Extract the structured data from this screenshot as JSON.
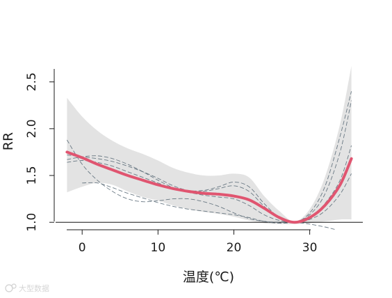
{
  "chart_data": {
    "type": "line",
    "title": "",
    "xlabel": "温度(℃)",
    "ylabel": "RR",
    "xlim": [
      -3.5,
      37
    ],
    "ylim": [
      0.92,
      2.78
    ],
    "x_ticks": [
      0,
      10,
      20,
      30
    ],
    "y_ticks": [
      1.0,
      1.5,
      2.0,
      2.5
    ],
    "x_tick_labels": [
      "0",
      "10",
      "20",
      "30"
    ],
    "y_tick_labels": [
      "1.0",
      "1.5",
      "2.0",
      "2.5"
    ],
    "reference_line": 1.0,
    "grid": false,
    "legend": "none",
    "main_curve": {
      "color": "#e05570",
      "x": [
        -2,
        0,
        2,
        4,
        6,
        8,
        10,
        12,
        14,
        16,
        18,
        20,
        22,
        24,
        26,
        28,
        30,
        32,
        34,
        35.5
      ],
      "y": [
        1.75,
        1.69,
        1.62,
        1.56,
        1.5,
        1.45,
        1.4,
        1.36,
        1.33,
        1.31,
        1.3,
        1.28,
        1.24,
        1.15,
        1.05,
        1.0,
        1.05,
        1.18,
        1.4,
        1.68
      ]
    },
    "confidence_band": {
      "color": "#e3e3e3",
      "x": [
        -2,
        0,
        2,
        4,
        6,
        8,
        10,
        12,
        14,
        16,
        18,
        20,
        22,
        24,
        26,
        28,
        30,
        32,
        34,
        35.5
      ],
      "upper": [
        2.33,
        2.13,
        1.98,
        1.87,
        1.79,
        1.73,
        1.66,
        1.58,
        1.53,
        1.5,
        1.5,
        1.52,
        1.48,
        1.28,
        1.12,
        1.01,
        1.14,
        1.48,
        2.05,
        2.67
      ],
      "lower": [
        1.32,
        1.38,
        1.42,
        1.4,
        1.33,
        1.27,
        1.23,
        1.18,
        1.14,
        1.11,
        1.09,
        1.06,
        1.02,
        0.99,
        0.98,
        0.98,
        0.99,
        1.01,
        1.03,
        1.03
      ]
    },
    "sensitivity_curves": {
      "color": "#5b6b78",
      "series": [
        {
          "x": [
            -2,
            0,
            2,
            4,
            6,
            8,
            10,
            12,
            14,
            16,
            18,
            20,
            22,
            24,
            26,
            28,
            30,
            32,
            34,
            35.5
          ],
          "y": [
            1.72,
            1.7,
            1.68,
            1.65,
            1.6,
            1.54,
            1.47,
            1.39,
            1.34,
            1.34,
            1.38,
            1.43,
            1.38,
            1.2,
            1.05,
            1.0,
            1.1,
            1.38,
            1.92,
            2.4
          ]
        },
        {
          "x": [
            -2,
            0,
            2,
            4,
            6,
            8,
            10,
            12,
            14,
            16,
            18,
            20,
            22,
            24,
            26,
            28,
            30,
            32,
            34,
            35.5
          ],
          "y": [
            1.67,
            1.7,
            1.71,
            1.68,
            1.62,
            1.54,
            1.45,
            1.37,
            1.33,
            1.33,
            1.36,
            1.39,
            1.33,
            1.17,
            1.04,
            1.0,
            1.08,
            1.3,
            1.75,
            2.3
          ]
        },
        {
          "x": [
            -2,
            0,
            2,
            4,
            6,
            8,
            10,
            12,
            14,
            16,
            18,
            20,
            22,
            24,
            26,
            28,
            30,
            32,
            34,
            35.5
          ],
          "y": [
            1.64,
            1.66,
            1.64,
            1.6,
            1.54,
            1.48,
            1.42,
            1.36,
            1.32,
            1.29,
            1.27,
            1.25,
            1.18,
            1.08,
            1.02,
            1.0,
            1.05,
            1.2,
            1.45,
            1.82
          ]
        },
        {
          "x": [
            -2,
            0,
            2,
            4,
            6,
            8,
            10,
            12,
            14,
            16,
            18,
            20,
            22,
            24,
            26,
            28,
            30,
            32,
            33.5
          ],
          "y": [
            1.88,
            1.62,
            1.45,
            1.33,
            1.25,
            1.22,
            1.23,
            1.25,
            1.25,
            1.22,
            1.17,
            1.1,
            1.04,
            1.01,
            1.0,
            1.0,
            0.98,
            0.95,
            0.92
          ]
        },
        {
          "x": [
            0,
            2,
            4,
            6,
            8,
            10,
            12,
            14,
            16,
            18,
            20,
            22,
            24,
            26,
            28,
            30,
            32,
            34,
            35.5
          ],
          "y": [
            1.42,
            1.42,
            1.37,
            1.31,
            1.26,
            1.21,
            1.17,
            1.14,
            1.12,
            1.1,
            1.08,
            1.05,
            1.01,
            0.99,
            1.0,
            1.03,
            1.12,
            1.3,
            1.52
          ]
        }
      ]
    }
  },
  "watermark": {
    "text": "大型数据"
  }
}
